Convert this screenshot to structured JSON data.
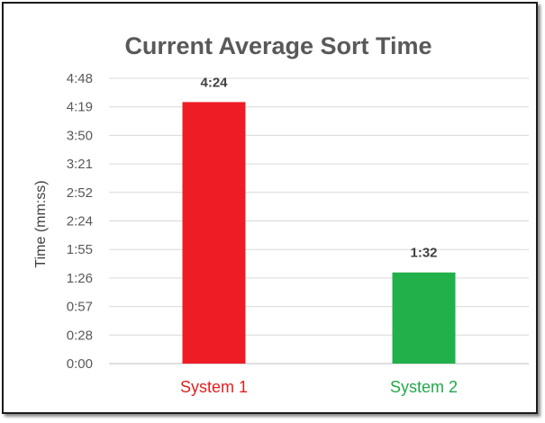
{
  "chart_data": {
    "type": "bar",
    "title": "Current Average Sort Time",
    "xlabel": "",
    "ylabel": "Time (mm:ss)",
    "categories": [
      "System 1",
      "System 2"
    ],
    "values": [
      264,
      92
    ],
    "value_labels": [
      "4:24",
      "1:32"
    ],
    "bar_colors": [
      "#ee1c25",
      "#22b04b"
    ],
    "category_label_colors": [
      "#e0201f",
      "#22a84a"
    ],
    "ylim": [
      0,
      288
    ],
    "y_ticks": [
      0,
      28.8,
      57.6,
      86.4,
      115.2,
      144,
      172.8,
      201.6,
      230.4,
      259.2,
      288
    ],
    "y_tick_labels": [
      "0:00",
      "0:28",
      "0:57",
      "1:26",
      "1:55",
      "2:24",
      "2:52",
      "3:21",
      "3:50",
      "4:19",
      "4:48"
    ],
    "grid": true,
    "legend": "none"
  }
}
